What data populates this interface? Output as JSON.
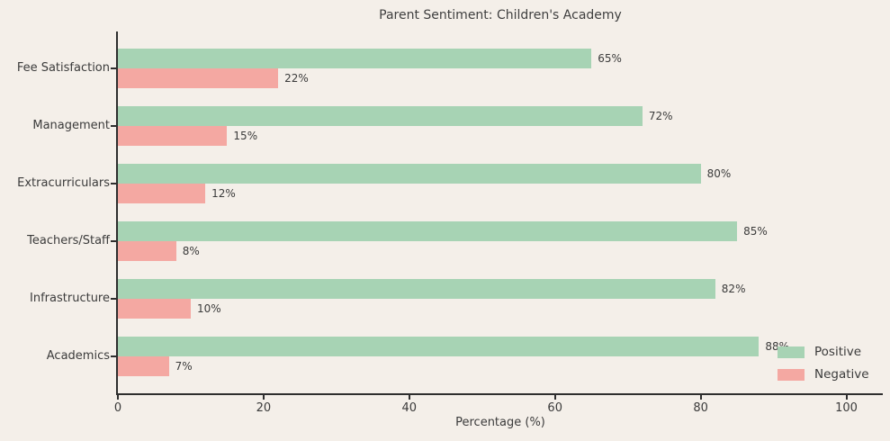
{
  "chart_data": {
    "type": "bar",
    "orientation": "horizontal",
    "title": "Parent Sentiment: Children's Academy",
    "xlabel": "Percentage (%)",
    "categories": [
      "Fee Satisfaction",
      "Management",
      "Extracurriculars",
      "Teachers/Staff",
      "Infrastructure",
      "Academics"
    ],
    "series": [
      {
        "name": "Positive",
        "color": "#a7d3b4",
        "values": [
          65,
          72,
          80,
          85,
          82,
          88
        ],
        "labels": [
          "65%",
          "72%",
          "80%",
          "85%",
          "82%",
          "88%"
        ]
      },
      {
        "name": "Negative",
        "color": "#f4a8a2",
        "values": [
          22,
          15,
          12,
          8,
          10,
          7
        ],
        "labels": [
          "22%",
          "15%",
          "12%",
          "8%",
          "10%",
          "7%"
        ]
      }
    ],
    "x_ticks": [
      "0",
      "20",
      "40",
      "60",
      "80",
      "100"
    ],
    "x_tick_values": [
      0,
      20,
      40,
      60,
      80,
      100
    ],
    "xlim": [
      0,
      105
    ],
    "grid": false,
    "legend": {
      "position": "lower-right",
      "entries": [
        "Positive",
        "Negative"
      ]
    },
    "colors": {
      "background": "#f4efe9",
      "text": "#3b3b3b",
      "spine": "#2e2e2e"
    }
  }
}
